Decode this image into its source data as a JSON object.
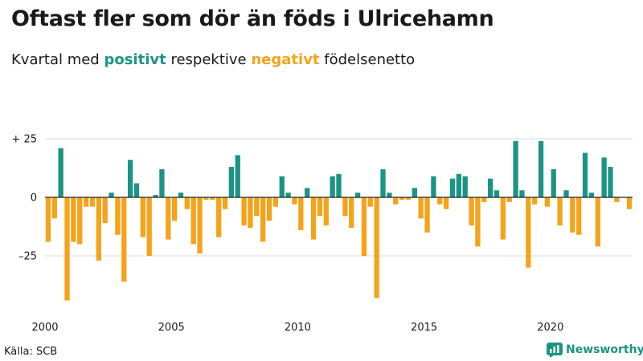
{
  "title": "Oftast fler som dör än föds i Ulricehamn",
  "subtitle": {
    "prefix": "Kvartal med",
    "positive_word": "positivt",
    "middle": "respektive",
    "negative_word": "negativt",
    "suffix": "födelsenetto"
  },
  "source": "Källa: SCB",
  "brand": "Newsworthy",
  "colors": {
    "positive": "#1c9483",
    "negative": "#f5a31a",
    "grid": "#d9d9d9",
    "zero_line": "#222222"
  },
  "chart_data": {
    "type": "bar",
    "title": "Oftast fler som dör än föds i Ulricehamn",
    "subtitle": "Kvartal med positivt respektive negativt födelsenetto",
    "xlabel": "",
    "ylabel": "",
    "ylim": [
      -45,
      25
    ],
    "yticks": [
      {
        "value": 25,
        "label": "+ 25"
      },
      {
        "value": 0,
        "label": "0"
      },
      {
        "value": -25,
        "label": "–25"
      }
    ],
    "xticks": [
      {
        "year": 2000,
        "label": "2000"
      },
      {
        "year": 2005,
        "label": "2005"
      },
      {
        "year": 2010,
        "label": "2010"
      },
      {
        "year": 2015,
        "label": "2015"
      },
      {
        "year": 2020,
        "label": "2020"
      }
    ],
    "start_year": 2000,
    "quarters_per_year": 4,
    "values": [
      -19,
      -9,
      21,
      -44,
      -19,
      -20,
      -4,
      -4,
      -27,
      -11,
      2,
      -16,
      -36,
      16,
      6,
      -17,
      -25,
      1,
      12,
      -18,
      -10,
      2,
      -5,
      -20,
      -24,
      -1,
      -1,
      -17,
      -5,
      13,
      18,
      -12,
      -13,
      -8,
      -19,
      -10,
      -4,
      9,
      2,
      -3,
      -14,
      4,
      -18,
      -8,
      -12,
      9,
      10,
      -8,
      -13,
      2,
      -25,
      -4,
      -43,
      12,
      2,
      -3,
      -1,
      -1,
      4,
      -9,
      -15,
      9,
      -3,
      -5,
      8,
      10,
      9,
      -12,
      -21,
      -2,
      8,
      3,
      -18,
      -2,
      24,
      3,
      -30,
      -3,
      24,
      -4,
      12,
      -12,
      3,
      -15,
      -16,
      19,
      2,
      -21,
      17,
      13,
      -2,
      0,
      -5
    ]
  }
}
